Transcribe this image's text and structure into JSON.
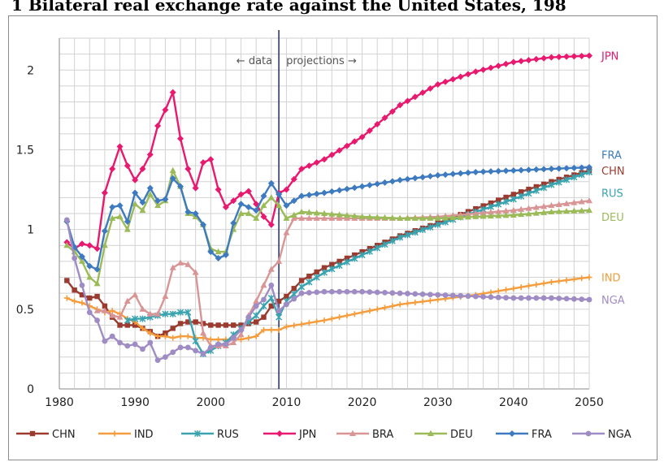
{
  "title": "1 Bilateral real exchange rate against the United States, 198",
  "chart_data": {
    "type": "line",
    "title": "1 Bilateral real exchange rate against the United States, 198",
    "xlabel": "",
    "ylabel": "",
    "xlim": [
      1980,
      2050
    ],
    "ylim": [
      0,
      2.2
    ],
    "x_ticks": [
      "1980",
      "1990",
      "2000",
      "2010",
      "2020",
      "2030",
      "2040",
      "2050"
    ],
    "y_ticks": [
      "0",
      "0.5",
      "1",
      "1.5",
      "2"
    ],
    "grid": true,
    "legend_position": "bottom",
    "divider_year": 2009,
    "annotations": {
      "data": "← data",
      "projections": "projections →"
    },
    "series": [
      {
        "name": "CHN",
        "color": "#9b3b2f",
        "marker": "square",
        "points": [
          [
            1981,
            0.68
          ],
          [
            1982,
            0.62
          ],
          [
            1983,
            0.59
          ],
          [
            1984,
            0.57
          ],
          [
            1985,
            0.58
          ],
          [
            1986,
            0.52
          ],
          [
            1987,
            0.45
          ],
          [
            1988,
            0.4
          ],
          [
            1989,
            0.4
          ],
          [
            1990,
            0.4
          ],
          [
            1991,
            0.38
          ],
          [
            1992,
            0.36
          ],
          [
            1993,
            0.33
          ],
          [
            1994,
            0.35
          ],
          [
            1995,
            0.38
          ],
          [
            1996,
            0.41
          ],
          [
            1997,
            0.42
          ],
          [
            1998,
            0.42
          ],
          [
            1999,
            0.41
          ],
          [
            2000,
            0.4
          ],
          [
            2001,
            0.4
          ],
          [
            2002,
            0.4
          ],
          [
            2003,
            0.4
          ],
          [
            2004,
            0.4
          ],
          [
            2005,
            0.41
          ],
          [
            2006,
            0.42
          ],
          [
            2007,
            0.45
          ],
          [
            2008,
            0.52
          ],
          [
            2009,
            0.55
          ],
          [
            2010,
            0.58
          ],
          [
            2012,
            0.68
          ],
          [
            2015,
            0.76
          ],
          [
            2020,
            0.86
          ],
          [
            2025,
            0.96
          ],
          [
            2030,
            1.04
          ],
          [
            2035,
            1.13
          ],
          [
            2040,
            1.22
          ],
          [
            2045,
            1.3
          ],
          [
            2050,
            1.37
          ]
        ]
      },
      {
        "name": "IND",
        "color": "#f59c3c",
        "marker": "cross",
        "points": [
          [
            1981,
            0.57
          ],
          [
            1982,
            0.55
          ],
          [
            1983,
            0.54
          ],
          [
            1984,
            0.52
          ],
          [
            1985,
            0.5
          ],
          [
            1986,
            0.48
          ],
          [
            1987,
            0.49
          ],
          [
            1988,
            0.47
          ],
          [
            1989,
            0.44
          ],
          [
            1990,
            0.42
          ],
          [
            1991,
            0.38
          ],
          [
            1992,
            0.35
          ],
          [
            1993,
            0.33
          ],
          [
            1994,
            0.33
          ],
          [
            1995,
            0.32
          ],
          [
            1996,
            0.33
          ],
          [
            1997,
            0.33
          ],
          [
            1998,
            0.32
          ],
          [
            1999,
            0.32
          ],
          [
            2000,
            0.31
          ],
          [
            2001,
            0.31
          ],
          [
            2002,
            0.31
          ],
          [
            2003,
            0.31
          ],
          [
            2004,
            0.31
          ],
          [
            2005,
            0.32
          ],
          [
            2006,
            0.33
          ],
          [
            2007,
            0.37
          ],
          [
            2008,
            0.37
          ],
          [
            2009,
            0.37
          ],
          [
            2010,
            0.39
          ],
          [
            2015,
            0.43
          ],
          [
            2020,
            0.48
          ],
          [
            2025,
            0.53
          ],
          [
            2030,
            0.56
          ],
          [
            2035,
            0.59
          ],
          [
            2040,
            0.63
          ],
          [
            2045,
            0.67
          ],
          [
            2050,
            0.7
          ]
        ]
      },
      {
        "name": "RUS",
        "color": "#3aa3b0",
        "marker": "star",
        "points": [
          [
            1989,
            0.43
          ],
          [
            1990,
            0.44
          ],
          [
            1991,
            0.44
          ],
          [
            1992,
            0.45
          ],
          [
            1993,
            0.46
          ],
          [
            1994,
            0.47
          ],
          [
            1995,
            0.47
          ],
          [
            1996,
            0.48
          ],
          [
            1997,
            0.48
          ],
          [
            1998,
            0.3
          ],
          [
            1999,
            0.22
          ],
          [
            2000,
            0.24
          ],
          [
            2001,
            0.27
          ],
          [
            2002,
            0.29
          ],
          [
            2003,
            0.34
          ],
          [
            2004,
            0.38
          ],
          [
            2005,
            0.42
          ],
          [
            2006,
            0.46
          ],
          [
            2007,
            0.52
          ],
          [
            2008,
            0.57
          ],
          [
            2009,
            0.45
          ],
          [
            2010,
            0.55
          ],
          [
            2012,
            0.64
          ],
          [
            2015,
            0.73
          ],
          [
            2020,
            0.84
          ],
          [
            2025,
            0.95
          ],
          [
            2030,
            1.03
          ],
          [
            2035,
            1.11
          ],
          [
            2040,
            1.19
          ],
          [
            2045,
            1.28
          ],
          [
            2050,
            1.36
          ]
        ]
      },
      {
        "name": "JPN",
        "color": "#e8196e",
        "marker": "diamond",
        "points": [
          [
            1981,
            0.92
          ],
          [
            1982,
            0.88
          ],
          [
            1983,
            0.91
          ],
          [
            1984,
            0.9
          ],
          [
            1985,
            0.88
          ],
          [
            1986,
            1.23
          ],
          [
            1987,
            1.38
          ],
          [
            1988,
            1.52
          ],
          [
            1989,
            1.4
          ],
          [
            1990,
            1.31
          ],
          [
            1991,
            1.38
          ],
          [
            1992,
            1.47
          ],
          [
            1993,
            1.65
          ],
          [
            1994,
            1.75
          ],
          [
            1995,
            1.86
          ],
          [
            1996,
            1.57
          ],
          [
            1997,
            1.38
          ],
          [
            1998,
            1.26
          ],
          [
            1999,
            1.42
          ],
          [
            2000,
            1.44
          ],
          [
            2001,
            1.25
          ],
          [
            2002,
            1.14
          ],
          [
            2003,
            1.18
          ],
          [
            2004,
            1.22
          ],
          [
            2005,
            1.24
          ],
          [
            2006,
            1.16
          ],
          [
            2007,
            1.08
          ],
          [
            2008,
            1.03
          ],
          [
            2009,
            1.23
          ],
          [
            2010,
            1.25
          ],
          [
            2012,
            1.38
          ],
          [
            2015,
            1.44
          ],
          [
            2020,
            1.58
          ],
          [
            2025,
            1.78
          ],
          [
            2030,
            1.91
          ],
          [
            2035,
            1.99
          ],
          [
            2040,
            2.05
          ],
          [
            2045,
            2.08
          ],
          [
            2050,
            2.09
          ]
        ]
      },
      {
        "name": "BRA",
        "color": "#d99595",
        "marker": "triangle",
        "points": [
          [
            1985,
            0.49
          ],
          [
            1986,
            0.49
          ],
          [
            1987,
            0.46
          ],
          [
            1988,
            0.45
          ],
          [
            1989,
            0.55
          ],
          [
            1990,
            0.59
          ],
          [
            1991,
            0.5
          ],
          [
            1992,
            0.47
          ],
          [
            1993,
            0.47
          ],
          [
            1994,
            0.58
          ],
          [
            1995,
            0.76
          ],
          [
            1996,
            0.79
          ],
          [
            1997,
            0.78
          ],
          [
            1998,
            0.73
          ],
          [
            1999,
            0.35
          ],
          [
            2000,
            0.27
          ],
          [
            2001,
            0.27
          ],
          [
            2002,
            0.27
          ],
          [
            2003,
            0.29
          ],
          [
            2004,
            0.34
          ],
          [
            2005,
            0.46
          ],
          [
            2006,
            0.55
          ],
          [
            2007,
            0.65
          ],
          [
            2008,
            0.75
          ],
          [
            2009,
            0.8
          ],
          [
            2010,
            0.98
          ],
          [
            2011,
            1.07
          ],
          [
            2015,
            1.07
          ],
          [
            2020,
            1.07
          ],
          [
            2025,
            1.07
          ],
          [
            2030,
            1.08
          ],
          [
            2035,
            1.1
          ],
          [
            2040,
            1.12
          ],
          [
            2045,
            1.15
          ],
          [
            2050,
            1.18
          ]
        ]
      },
      {
        "name": "DEU",
        "color": "#9bbb59",
        "marker": "triangle",
        "points": [
          [
            1981,
            0.9
          ],
          [
            1982,
            0.86
          ],
          [
            1983,
            0.8
          ],
          [
            1984,
            0.7
          ],
          [
            1985,
            0.66
          ],
          [
            1986,
            0.9
          ],
          [
            1987,
            1.07
          ],
          [
            1988,
            1.08
          ],
          [
            1989,
            1.0
          ],
          [
            1990,
            1.16
          ],
          [
            1991,
            1.12
          ],
          [
            1992,
            1.22
          ],
          [
            1993,
            1.15
          ],
          [
            1994,
            1.18
          ],
          [
            1995,
            1.37
          ],
          [
            1996,
            1.27
          ],
          [
            1997,
            1.1
          ],
          [
            1998,
            1.08
          ],
          [
            1999,
            1.03
          ],
          [
            2000,
            0.88
          ],
          [
            2001,
            0.86
          ],
          [
            2002,
            0.86
          ],
          [
            2003,
            1.0
          ],
          [
            2004,
            1.1
          ],
          [
            2005,
            1.1
          ],
          [
            2006,
            1.07
          ],
          [
            2007,
            1.15
          ],
          [
            2008,
            1.2
          ],
          [
            2009,
            1.15
          ],
          [
            2010,
            1.07
          ],
          [
            2012,
            1.11
          ],
          [
            2015,
            1.1
          ],
          [
            2020,
            1.08
          ],
          [
            2025,
            1.07
          ],
          [
            2030,
            1.07
          ],
          [
            2035,
            1.08
          ],
          [
            2040,
            1.09
          ],
          [
            2045,
            1.11
          ],
          [
            2050,
            1.12
          ]
        ]
      },
      {
        "name": "FRA",
        "color": "#3d7abf",
        "marker": "diamond",
        "points": [
          [
            1981,
            1.05
          ],
          [
            1982,
            0.89
          ],
          [
            1983,
            0.83
          ],
          [
            1984,
            0.77
          ],
          [
            1985,
            0.75
          ],
          [
            1986,
            0.99
          ],
          [
            1987,
            1.14
          ],
          [
            1988,
            1.15
          ],
          [
            1989,
            1.05
          ],
          [
            1990,
            1.23
          ],
          [
            1991,
            1.17
          ],
          [
            1992,
            1.26
          ],
          [
            1993,
            1.18
          ],
          [
            1994,
            1.19
          ],
          [
            1995,
            1.32
          ],
          [
            1996,
            1.27
          ],
          [
            1997,
            1.11
          ],
          [
            1998,
            1.1
          ],
          [
            1999,
            1.03
          ],
          [
            2000,
            0.86
          ],
          [
            2001,
            0.82
          ],
          [
            2002,
            0.84
          ],
          [
            2003,
            1.04
          ],
          [
            2004,
            1.16
          ],
          [
            2005,
            1.14
          ],
          [
            2006,
            1.12
          ],
          [
            2007,
            1.21
          ],
          [
            2008,
            1.29
          ],
          [
            2009,
            1.22
          ],
          [
            2010,
            1.15
          ],
          [
            2012,
            1.21
          ],
          [
            2015,
            1.23
          ],
          [
            2020,
            1.27
          ],
          [
            2025,
            1.31
          ],
          [
            2030,
            1.34
          ],
          [
            2035,
            1.36
          ],
          [
            2040,
            1.37
          ],
          [
            2045,
            1.38
          ],
          [
            2050,
            1.39
          ]
        ]
      },
      {
        "name": "NGA",
        "color": "#a08cc4",
        "marker": "circle",
        "points": [
          [
            1981,
            1.06
          ],
          [
            1982,
            0.82
          ],
          [
            1983,
            0.65
          ],
          [
            1984,
            0.48
          ],
          [
            1985,
            0.43
          ],
          [
            1986,
            0.3
          ],
          [
            1987,
            0.33
          ],
          [
            1988,
            0.29
          ],
          [
            1989,
            0.27
          ],
          [
            1990,
            0.28
          ],
          [
            1991,
            0.25
          ],
          [
            1992,
            0.29
          ],
          [
            1993,
            0.18
          ],
          [
            1994,
            0.2
          ],
          [
            1995,
            0.23
          ],
          [
            1996,
            0.26
          ],
          [
            1997,
            0.26
          ],
          [
            1998,
            0.24
          ],
          [
            1999,
            0.22
          ],
          [
            2000,
            0.26
          ],
          [
            2001,
            0.28
          ],
          [
            2002,
            0.28
          ],
          [
            2003,
            0.32
          ],
          [
            2004,
            0.37
          ],
          [
            2005,
            0.45
          ],
          [
            2006,
            0.52
          ],
          [
            2007,
            0.56
          ],
          [
            2008,
            0.65
          ],
          [
            2009,
            0.49
          ],
          [
            2010,
            0.53
          ],
          [
            2012,
            0.6
          ],
          [
            2015,
            0.61
          ],
          [
            2020,
            0.61
          ],
          [
            2025,
            0.6
          ],
          [
            2030,
            0.59
          ],
          [
            2035,
            0.58
          ],
          [
            2040,
            0.57
          ],
          [
            2045,
            0.57
          ],
          [
            2050,
            0.56
          ]
        ]
      }
    ]
  }
}
